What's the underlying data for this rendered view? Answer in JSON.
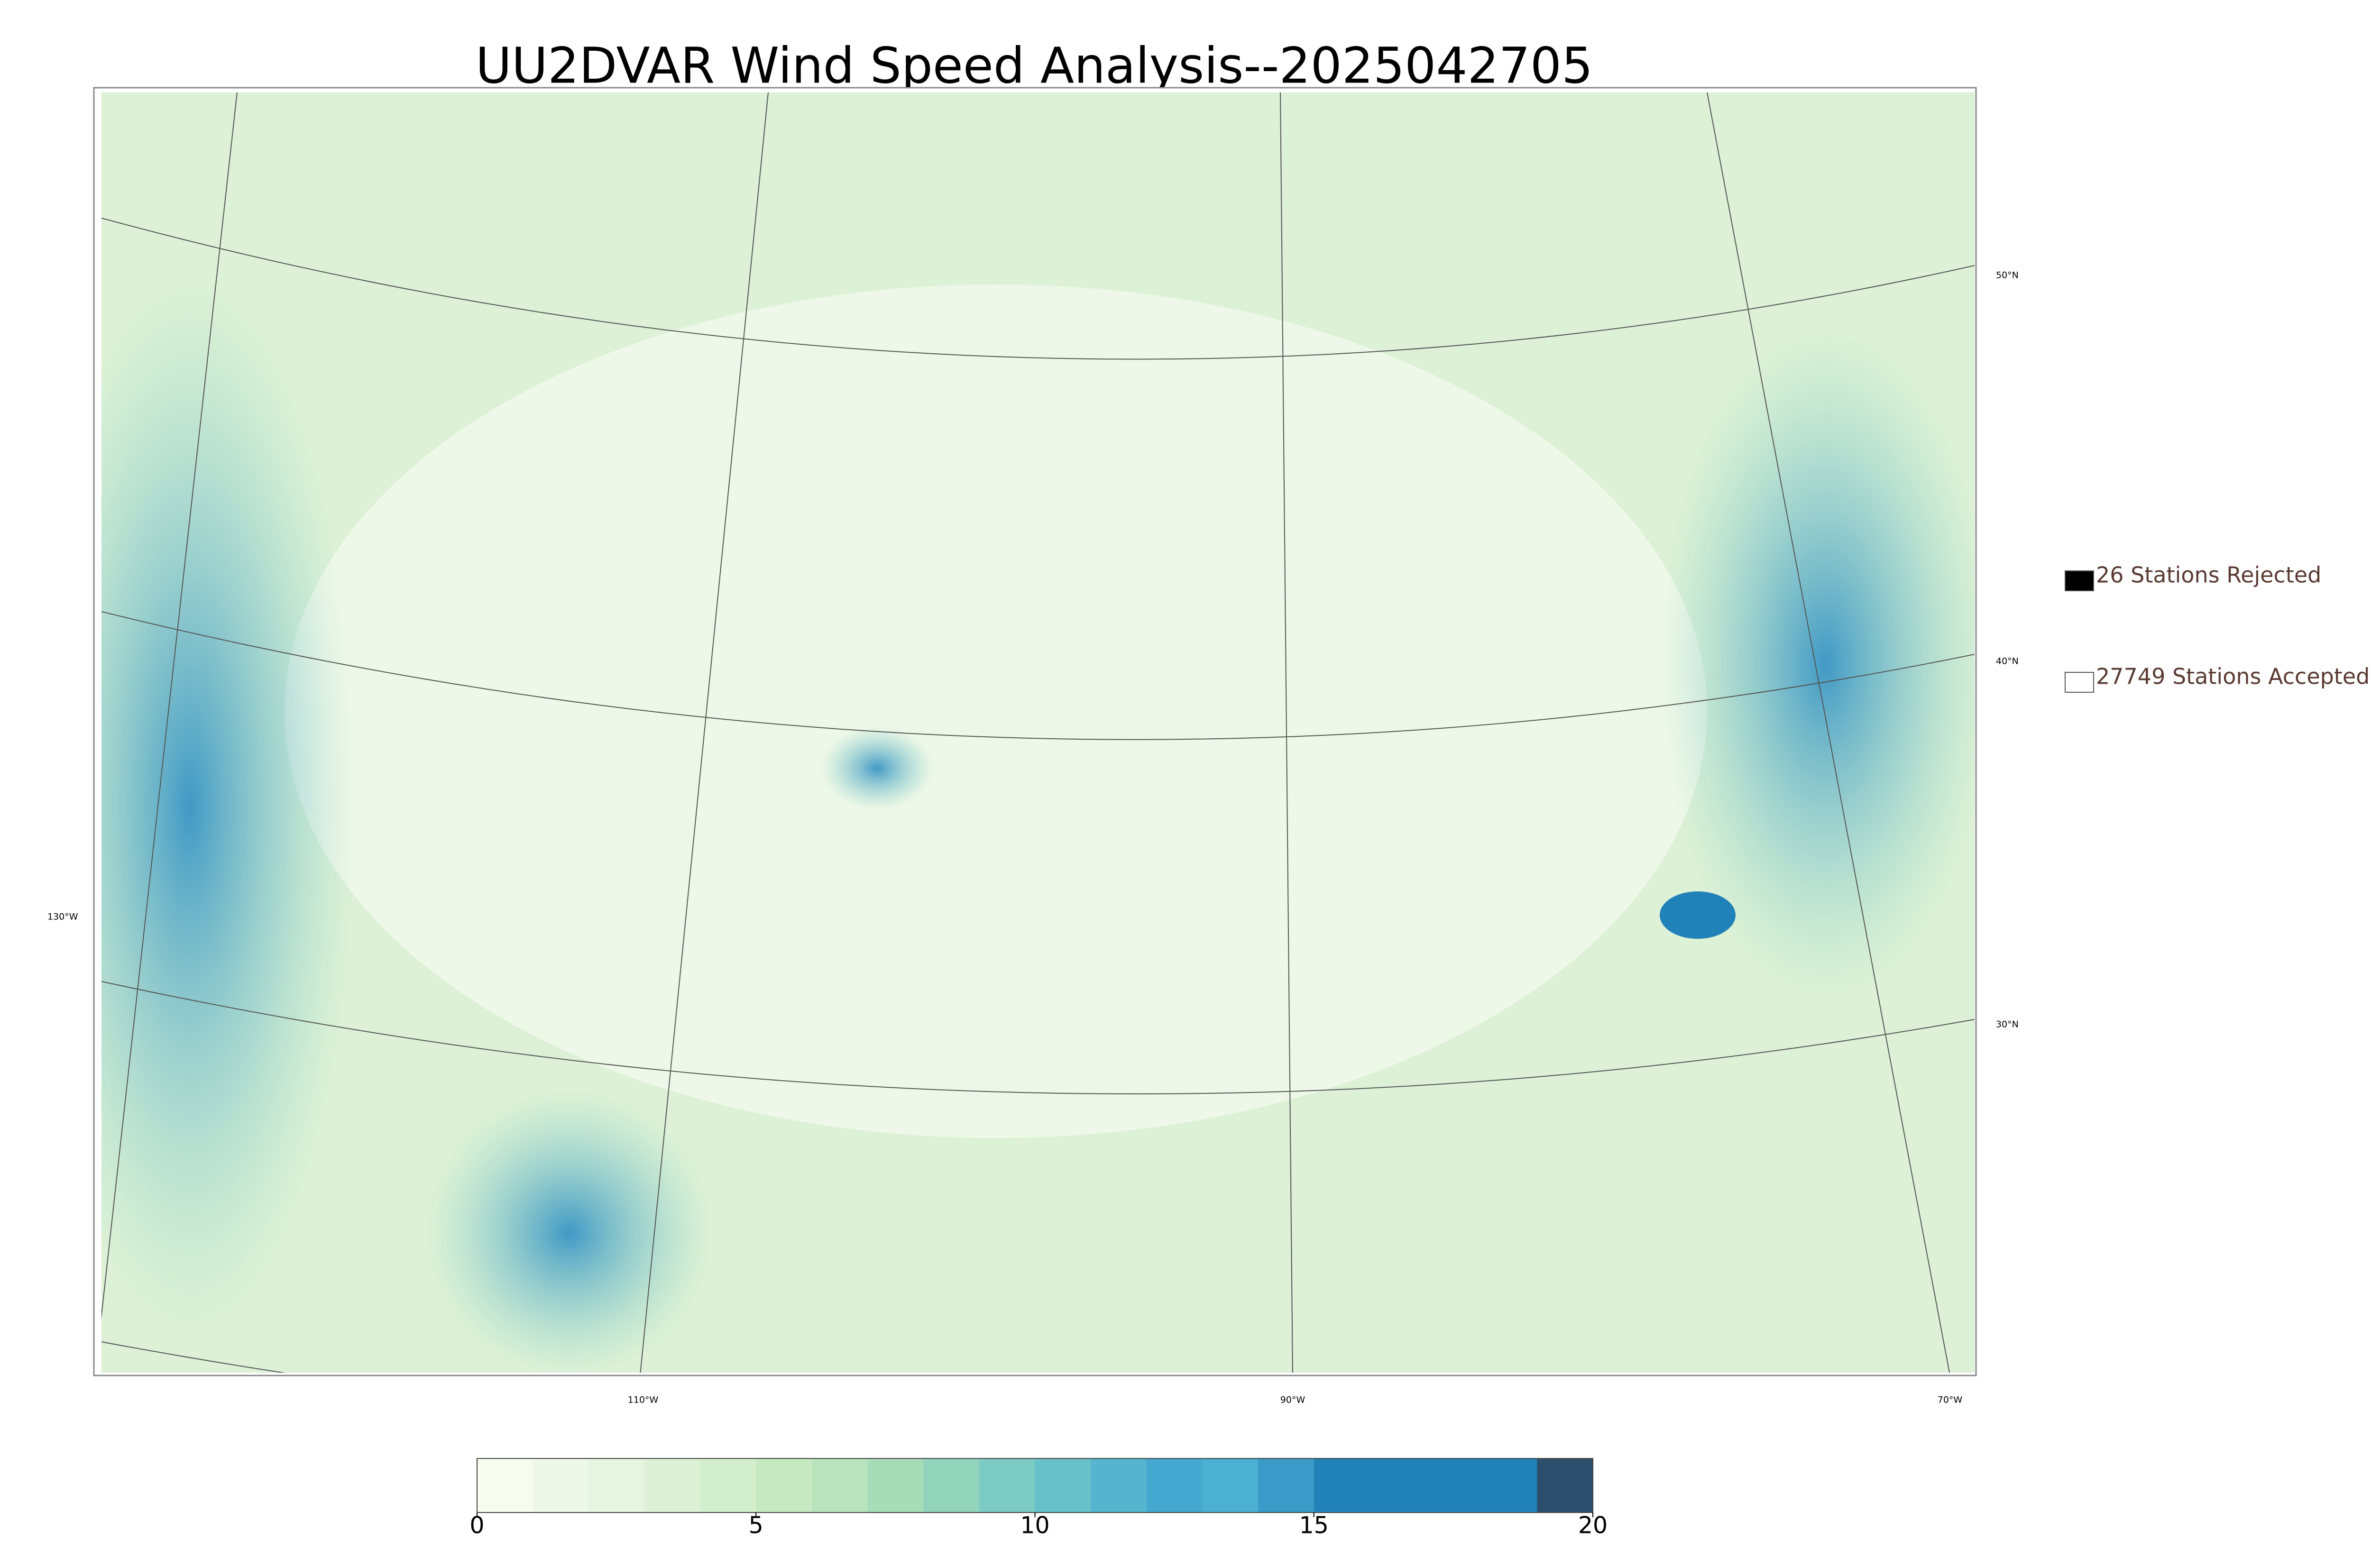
{
  "title": "UU2DVAR Wind Speed Analysis--2025042705",
  "legend": [
    {
      "label": "26 Stations Rejected",
      "color": "#000000"
    },
    {
      "label": "27749 Stations Accepted",
      "color": "#ffffff"
    }
  ],
  "graticule": {
    "lat_labels": [
      "50°N",
      "40°N",
      "30°N"
    ],
    "lon_labels": [
      "130°W",
      "110°W",
      "90°W",
      "70°W"
    ]
  },
  "colorbar": {
    "lim": [
      0,
      20
    ],
    "ticks": [
      0,
      5,
      10,
      15,
      20
    ],
    "bounds": [
      0,
      1,
      2,
      3,
      4,
      5,
      6,
      7,
      8,
      9,
      10,
      11,
      12,
      13,
      14,
      15,
      16,
      17,
      18,
      19,
      20
    ],
    "colors": [
      "#f7fcf0",
      "#eef8e8",
      "#e6f5e0",
      "#dcf1d6",
      "#d3eecd",
      "#c6e9c1",
      "#b8e3bc",
      "#a6dcb8",
      "#92d4bb",
      "#7ccbc4",
      "#67c1ca",
      "#55b5ce",
      "#45a8d0",
      "#4cb0d3",
      "#3b9bc8",
      "#2182b9",
      "#2182b9",
      "#2182b9",
      "#2182b9",
      "#2a4e6c"
    ]
  }
}
